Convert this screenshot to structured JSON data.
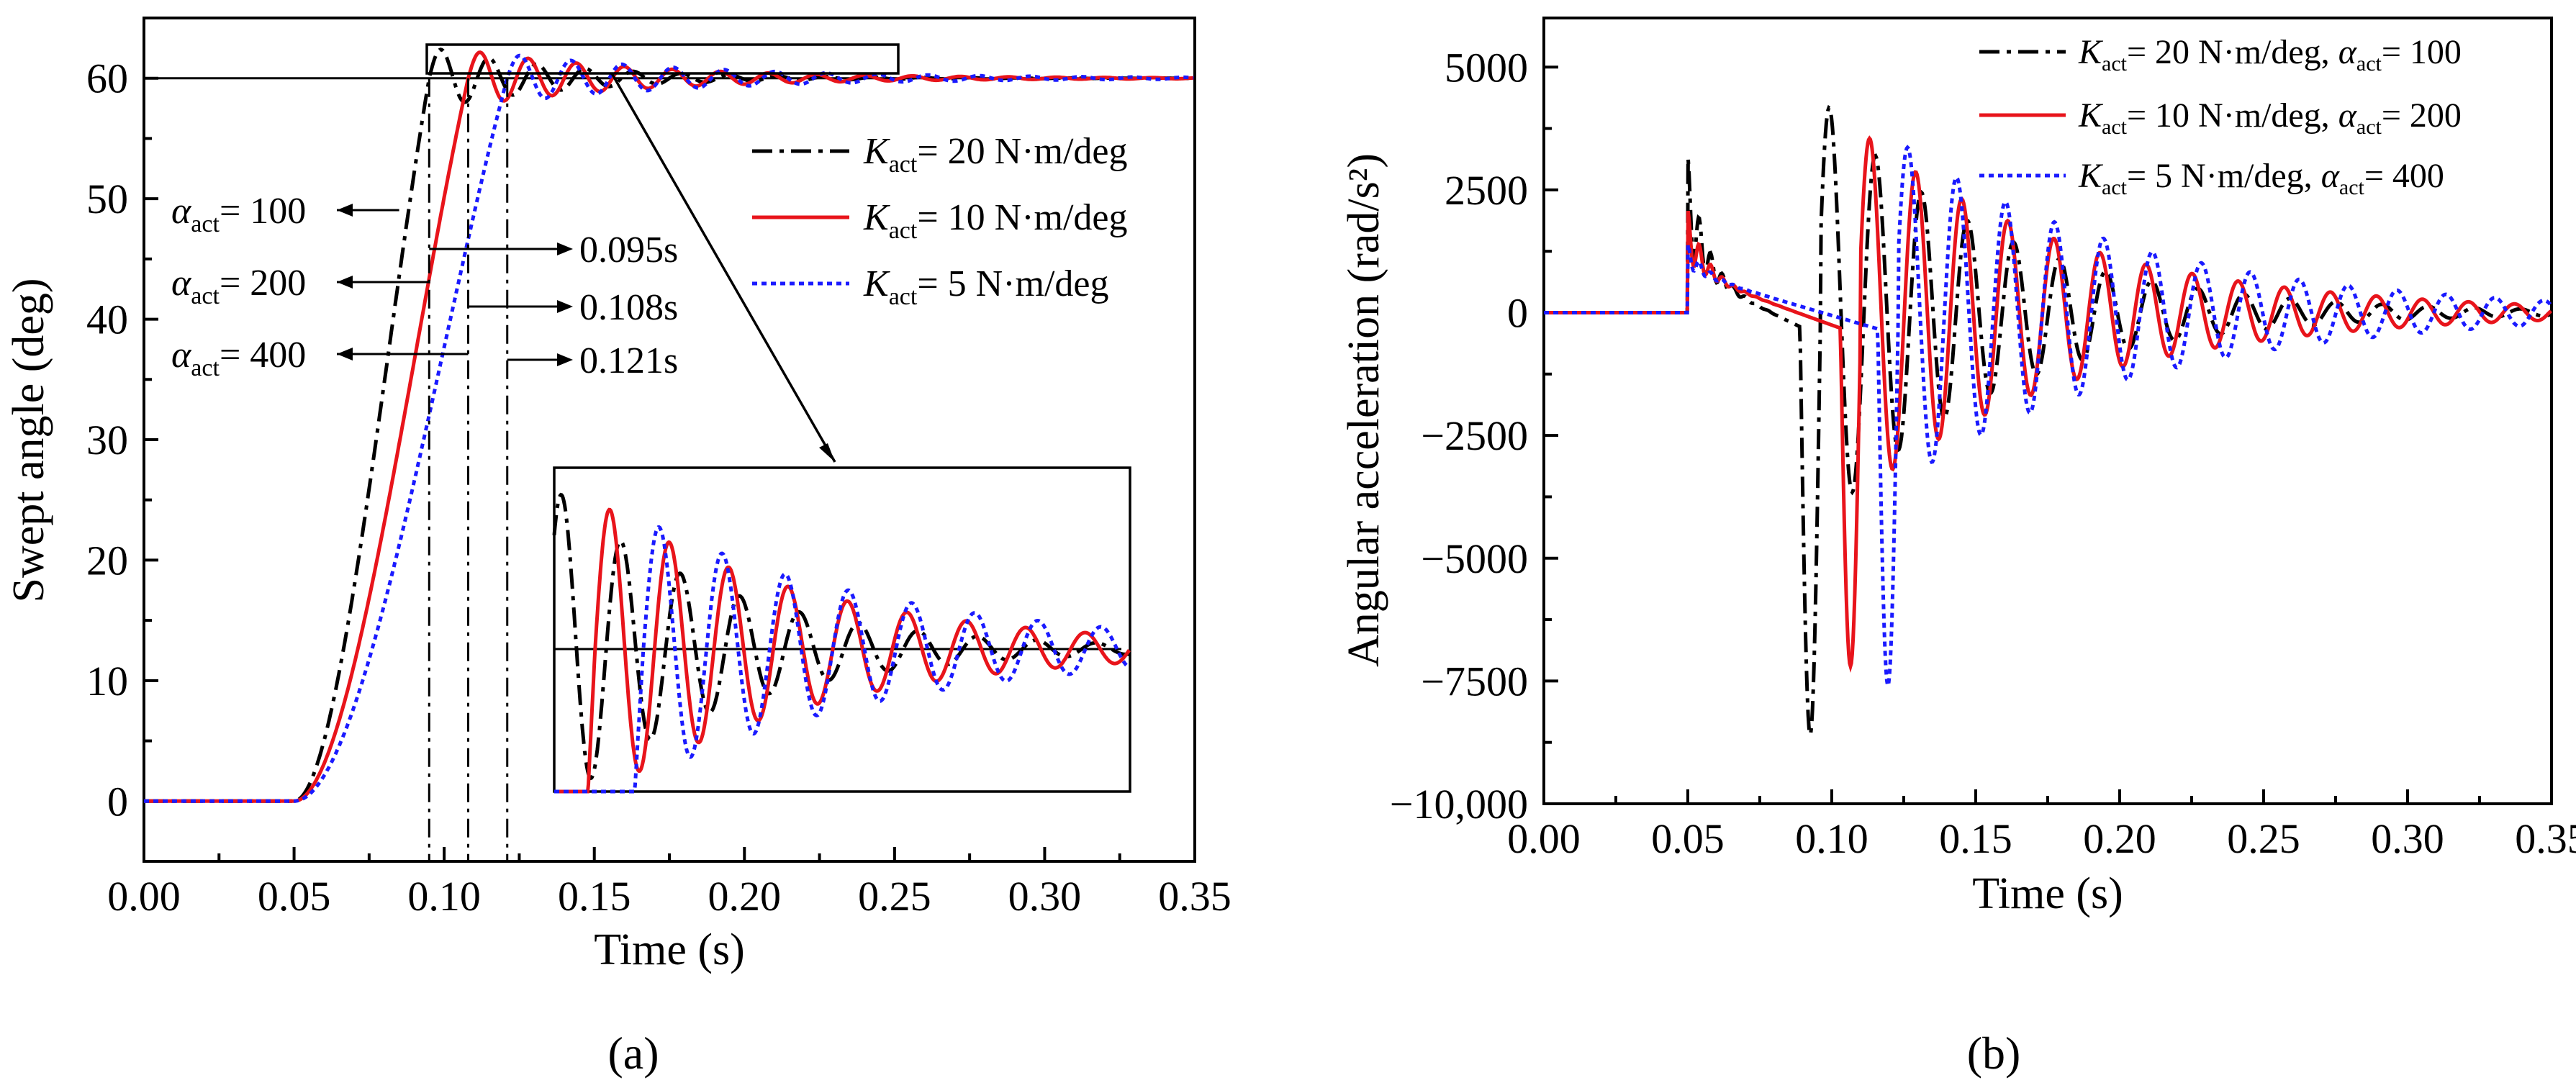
{
  "chart_data": [
    {
      "type": "line",
      "panel_label": "(a)",
      "xlabel": "Time (s)",
      "ylabel": "Swept angle (deg)",
      "xlim": [
        0.0,
        0.35
      ],
      "ylim": [
        -5,
        65
      ],
      "xticks": [
        "0.00",
        "0.05",
        "0.10",
        "0.15",
        "0.20",
        "0.25",
        "0.30",
        "0.35"
      ],
      "yticks": [
        "0",
        "10",
        "20",
        "30",
        "40",
        "50",
        "60"
      ],
      "reference_line": 60,
      "series": [
        {
          "name": "K_act = 20 N·m/deg",
          "k_label": "K",
          "k_sub": "act",
          "legend_text": "= 20  N·m/deg",
          "color": "#000000",
          "style": "dashdot",
          "rise_start": 0.05,
          "t_reach": 0.095,
          "overshoot": 2.6,
          "period": 0.016,
          "decay": 0.045
        },
        {
          "name": "K_act = 10 N·m/deg",
          "k_label": "K",
          "k_sub": "act",
          "legend_text": "= 10  N·m/deg",
          "color": "#e8141b",
          "style": "solid",
          "rise_start": 0.05,
          "t_reach": 0.108,
          "overshoot": 2.3,
          "period": 0.016,
          "decay": 0.06
        },
        {
          "name": "K_act = 5 N·m/deg",
          "k_label": "K",
          "k_sub": "act",
          "legend_text": "= 5    N·m/deg",
          "color": "#1a1aff",
          "style": "dotted",
          "rise_start": 0.05,
          "t_reach": 0.121,
          "overshoot": 2.0,
          "period": 0.017,
          "decay": 0.07
        }
      ],
      "vlines": [
        0.095,
        0.108,
        0.121
      ],
      "annotations": {
        "alpha_labels": [
          {
            "symbol": "α",
            "sub": "act",
            "text": "= 100"
          },
          {
            "symbol": "α",
            "sub": "act",
            "text": "= 200"
          },
          {
            "symbol": "α",
            "sub": "act",
            "text": "= 400"
          }
        ],
        "time_labels": [
          "0.095s",
          "0.108s",
          "0.121s"
        ]
      },
      "zoom_window": {
        "x": [
          0.097,
          0.252
        ],
        "y": [
          57.8,
          62.8
        ]
      }
    },
    {
      "type": "line",
      "panel_label": "(b)",
      "xlabel": "Time (s)",
      "ylabel": "Angular acceleration (rad/s²)",
      "xlim": [
        0.0,
        0.35
      ],
      "ylim": [
        -10000,
        6000
      ],
      "xticks": [
        "0.00",
        "0.05",
        "0.10",
        "0.15",
        "0.20",
        "0.25",
        "0.30",
        "0.35"
      ],
      "yticks": [
        "−10,000",
        "−7500",
        "−5000",
        "−2500",
        "0",
        "2500",
        "5000"
      ],
      "ytick_values": [
        -10000,
        -7500,
        -5000,
        -2500,
        0,
        2500,
        5000
      ],
      "series": [
        {
          "name": "K_act = 20 N·m/deg, α_act = 100",
          "legend_text": "= 20  N·m/deg,",
          "alpha_text": "= 100",
          "color": "#000000",
          "style": "dashdot",
          "t_impact": 0.093,
          "min": -8600,
          "peak": 4400,
          "period": 0.016,
          "decay": 0.06,
          "spike": 2400
        },
        {
          "name": "K_act = 10 N·m/deg, α_act = 200",
          "legend_text": "= 10  N·m/deg,",
          "alpha_text": "= 200",
          "color": "#e8141b",
          "style": "solid",
          "t_impact": 0.107,
          "min": -7200,
          "peak": 3700,
          "period": 0.016,
          "decay": 0.075,
          "spike": 1300
        },
        {
          "name": "K_act = 5 N·m/deg, α_act = 400",
          "legend_text": "= 5    N·m/deg,",
          "alpha_text": "= 400",
          "color": "#1a1aff",
          "style": "dotted",
          "t_impact": 0.12,
          "min": -7600,
          "peak": 3500,
          "period": 0.017,
          "decay": 0.085,
          "spike": 600
        }
      ]
    }
  ]
}
